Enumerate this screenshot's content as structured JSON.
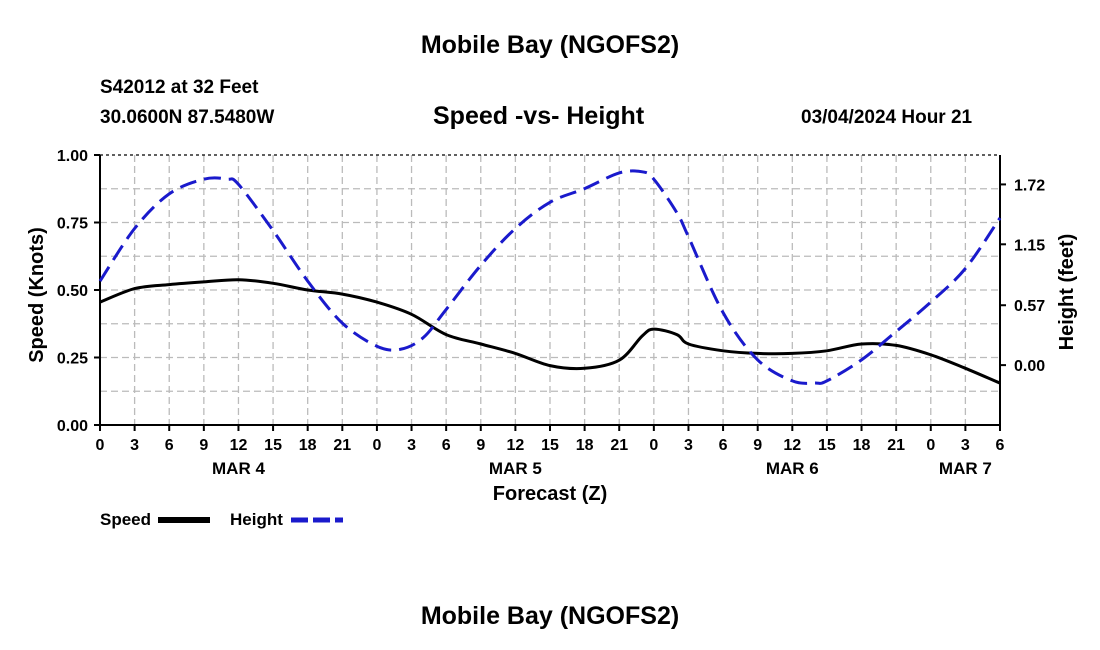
{
  "page": {
    "title_top": "Mobile Bay (NGOFS2)",
    "title_bottom": "Mobile Bay (NGOFS2)",
    "station": "S42012 at 32 Feet",
    "coords": "30.0600N  87.5480W",
    "subtitle": "Speed -vs- Height",
    "datetime": "03/04/2024 Hour 21"
  },
  "colors": {
    "speed": "#000000",
    "height": "#1a1acc",
    "grid": "#bbbbbb"
  },
  "chart_data": {
    "type": "line",
    "xlabel": "Forecast (Z)",
    "ylabel_left": "Speed (Knots)",
    "ylabel_right": "Height (feet)",
    "x_unit": "hours from MAR 4 00Z",
    "xlim": [
      0,
      78
    ],
    "x_ticks": [
      0,
      3,
      6,
      9,
      12,
      15,
      18,
      21,
      24,
      27,
      30,
      33,
      36,
      39,
      42,
      45,
      48,
      51,
      54,
      57,
      60,
      63,
      66,
      69,
      72,
      75,
      78
    ],
    "x_tick_labels": [
      "0",
      "3",
      "6",
      "9",
      "12",
      "15",
      "18",
      "21",
      "0",
      "3",
      "6",
      "9",
      "12",
      "15",
      "18",
      "21",
      "0",
      "3",
      "6",
      "9",
      "12",
      "15",
      "18",
      "21",
      "0",
      "3",
      "6"
    ],
    "day_labels": [
      {
        "x": 12,
        "label": "MAR 4"
      },
      {
        "x": 36,
        "label": "MAR 5"
      },
      {
        "x": 60,
        "label": "MAR 6"
      },
      {
        "x": 75,
        "label": "MAR 7"
      }
    ],
    "ylim_left": [
      0,
      1.0
    ],
    "y_ticks_left": [
      0,
      0.25,
      0.5,
      0.75,
      1.0
    ],
    "y_tick_labels_left": [
      "0.00",
      "0.25",
      "0.50",
      "0.75",
      "1.00"
    ],
    "ylim_right": [
      -0.57,
      2.0
    ],
    "y_ticks_right": [
      0,
      0.57,
      1.15,
      1.72
    ],
    "y_tick_labels_right": [
      "0.00",
      "0.57",
      "1.15",
      "1.72"
    ],
    "grid": true,
    "legend_position": "below-left",
    "series": [
      {
        "name": "Speed",
        "axis": "left",
        "style": "solid",
        "x": [
          0,
          3,
          6,
          9,
          12,
          15,
          18,
          21,
          24,
          27,
          30,
          33,
          36,
          39,
          42,
          45,
          47,
          48,
          50,
          51,
          54,
          57,
          60,
          63,
          66,
          69,
          72,
          75,
          78
        ],
        "y": [
          0.455,
          0.505,
          0.52,
          0.53,
          0.538,
          0.525,
          0.5,
          0.485,
          0.455,
          0.41,
          0.335,
          0.3,
          0.265,
          0.22,
          0.21,
          0.24,
          0.33,
          0.355,
          0.335,
          0.3,
          0.275,
          0.265,
          0.265,
          0.275,
          0.3,
          0.295,
          0.26,
          0.21,
          0.155
        ]
      },
      {
        "name": "Height",
        "axis": "right",
        "style": "dashed",
        "x": [
          0,
          3,
          6,
          9,
          11,
          12,
          15,
          18,
          21,
          24,
          26,
          28,
          30,
          33,
          36,
          39,
          42,
          45,
          47,
          48,
          50,
          51,
          54,
          57,
          60,
          62,
          63,
          66,
          69,
          72,
          75,
          78
        ],
        "y": [
          0.8,
          1.3,
          1.63,
          1.77,
          1.77,
          1.72,
          1.28,
          0.8,
          0.4,
          0.18,
          0.15,
          0.26,
          0.53,
          0.95,
          1.3,
          1.55,
          1.68,
          1.83,
          1.84,
          1.77,
          1.45,
          1.22,
          0.5,
          0.05,
          -0.15,
          -0.17,
          -0.15,
          0.05,
          0.32,
          0.6,
          0.92,
          1.4
        ]
      }
    ],
    "legend": [
      {
        "label": "Speed",
        "style": "solid"
      },
      {
        "label": "Height",
        "style": "dashed"
      }
    ]
  }
}
